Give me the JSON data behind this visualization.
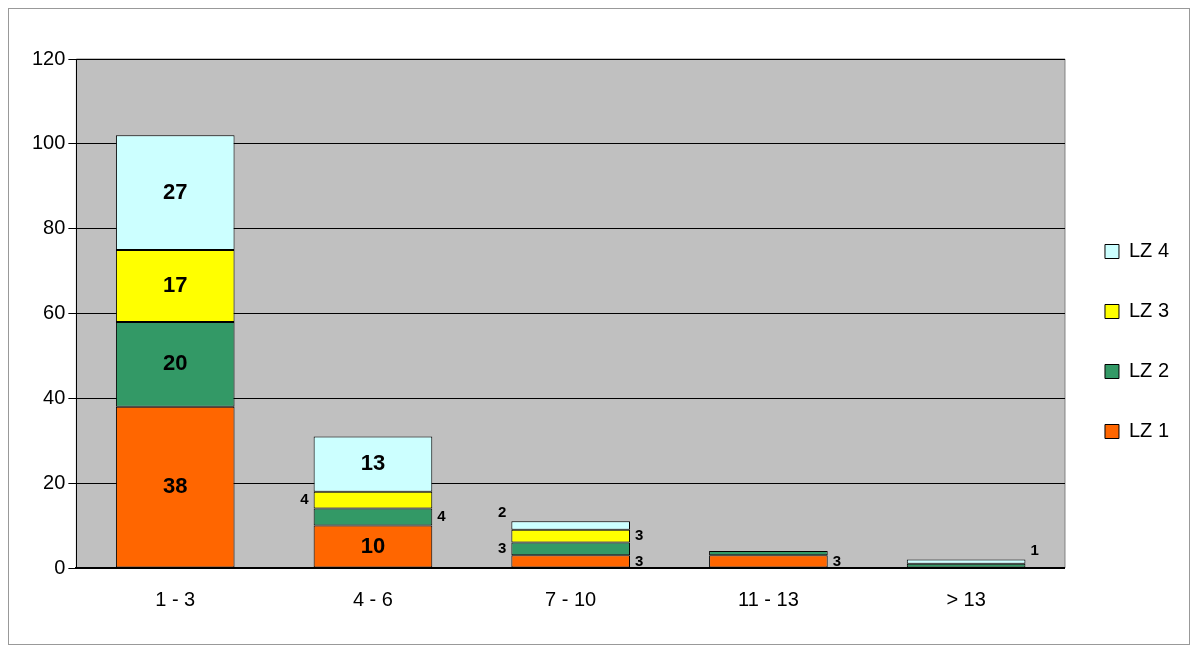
{
  "chart_data": {
    "type": "bar",
    "stacked": true,
    "categories": [
      "1 - 3",
      "4 - 6",
      "7 - 10",
      "11 - 13",
      "> 13"
    ],
    "series": [
      {
        "name": "LZ 1",
        "color": "#ff6600",
        "values": [
          38,
          10,
          3,
          3,
          0
        ],
        "value_labels": [
          "38",
          "10",
          "3",
          "3",
          null
        ]
      },
      {
        "name": "LZ 2",
        "color": "#339966",
        "values": [
          20,
          4,
          3,
          1,
          1
        ],
        "value_labels": [
          "20",
          "4",
          "3",
          null,
          null
        ]
      },
      {
        "name": "LZ 3",
        "color": "#ffff00",
        "values": [
          17,
          4,
          3,
          0,
          0
        ],
        "value_labels": [
          "17",
          "4",
          "3",
          null,
          null
        ]
      },
      {
        "name": "LZ 4",
        "color": "#ccffff",
        "values": [
          27,
          13,
          2,
          0,
          1
        ],
        "value_labels": [
          "27",
          "13",
          "2",
          null,
          "1"
        ]
      }
    ],
    "ylim": [
      0,
      120
    ],
    "yticks": [
      0,
      20,
      40,
      60,
      80,
      100,
      120
    ],
    "grid": "y",
    "legend": "right"
  }
}
